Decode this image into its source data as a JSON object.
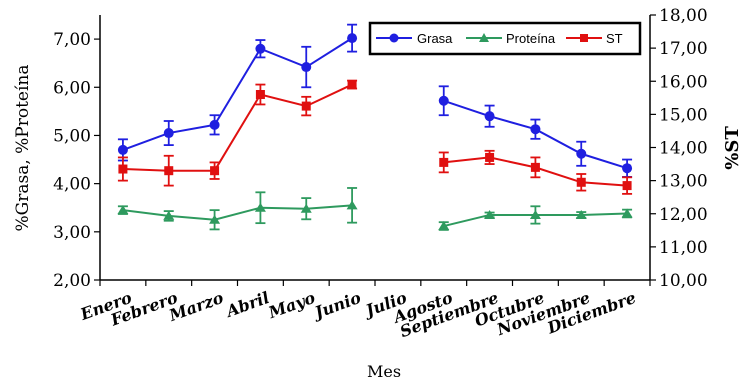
{
  "chart_data": {
    "type": "line",
    "categories": [
      "Enero",
      "Febrero",
      "Marzo",
      "Abril",
      "Mayo",
      "Junio",
      "Julio",
      "Agosto",
      "Septiembre",
      "Octubre",
      "Noviembre",
      "Diciembre"
    ],
    "xlabel": "Mes",
    "ylabel_left": "%Grasa, %Proteína",
    "ylabel_right": "%ST",
    "ylim_left": [
      2,
      7.5
    ],
    "ylim_right": [
      10,
      18
    ],
    "yticks_left": [
      "2,00",
      "3,00",
      "4,00",
      "5,00",
      "6,00",
      "7,00"
    ],
    "yticks_right": [
      "10,00",
      "11,00",
      "12,00",
      "13,00",
      "14,00",
      "15,00",
      "16,00",
      "17,00",
      "18,00"
    ],
    "legend_position": "top-right",
    "series": [
      {
        "name": "Grasa",
        "axis": "left",
        "color": "#1f1fe0",
        "marker": "circle",
        "values": [
          4.7,
          5.05,
          5.22,
          6.8,
          6.42,
          7.02,
          null,
          5.72,
          5.4,
          5.13,
          4.62,
          4.32
        ],
        "errors": [
          0.22,
          0.25,
          0.2,
          0.18,
          0.42,
          0.28,
          null,
          0.3,
          0.22,
          0.2,
          0.25,
          0.18
        ]
      },
      {
        "name": "Proteína",
        "axis": "left",
        "color": "#2e9a5e",
        "marker": "triangle",
        "values": [
          3.45,
          3.33,
          3.25,
          3.5,
          3.48,
          3.55,
          null,
          3.12,
          3.35,
          3.35,
          3.35,
          3.38
        ],
        "errors": [
          0.08,
          0.1,
          0.2,
          0.32,
          0.22,
          0.36,
          null,
          0.08,
          0.05,
          0.18,
          0.06,
          0.08
        ]
      },
      {
        "name": "ST",
        "axis": "right",
        "color": "#e01010",
        "marker": "square",
        "values": [
          13.35,
          13.3,
          13.3,
          15.6,
          15.25,
          15.9,
          null,
          13.55,
          13.7,
          13.4,
          12.95,
          12.85
        ],
        "errors": [
          0.35,
          0.45,
          0.25,
          0.3,
          0.28,
          0.12,
          null,
          0.3,
          0.2,
          0.3,
          0.25,
          0.25
        ]
      }
    ]
  }
}
